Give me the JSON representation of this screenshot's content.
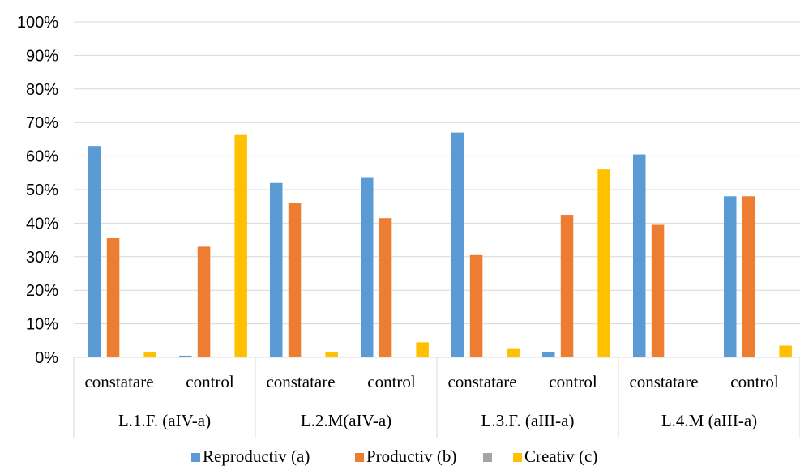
{
  "chart_data": {
    "type": "bar",
    "title": "",
    "xlabel": "",
    "ylabel": "",
    "ylim": [
      0,
      100
    ],
    "y_ticks": [
      "0%",
      "10%",
      "20%",
      "30%",
      "40%",
      "50%",
      "60%",
      "70%",
      "80%",
      "90%",
      "100%"
    ],
    "grid": true,
    "legend_position": "bottom",
    "groups": [
      {
        "label": "L.1.F. (aIV-a)",
        "categories": [
          "constatare",
          "control"
        ]
      },
      {
        "label": "L.2.M(aIV-a)",
        "categories": [
          "constatare",
          "control"
        ]
      },
      {
        "label": "L.3.F. (aIII-a)",
        "categories": [
          "constatare",
          "control"
        ]
      },
      {
        "label": "L.4.M (aIII-a)",
        "categories": [
          "constatare",
          "control"
        ]
      }
    ],
    "series": [
      {
        "name": "Reproductiv (a)",
        "color": "#5B9BD5",
        "values": [
          63,
          0.5,
          52,
          53.5,
          67,
          1.5,
          60.5,
          48
        ]
      },
      {
        "name": "Productiv (b)",
        "color": "#ED7D31",
        "values": [
          35.5,
          33,
          46,
          41.5,
          30.5,
          42.5,
          39.5,
          48
        ]
      },
      {
        "name": "",
        "color": "#A5A5A5",
        "values": [
          0,
          0,
          0,
          0,
          0,
          0,
          0,
          0
        ]
      },
      {
        "name": "Creativ (c)",
        "color": "#FFC000",
        "values": [
          1.5,
          66.5,
          1.5,
          4.5,
          2.5,
          56,
          0,
          3.5
        ]
      }
    ]
  }
}
